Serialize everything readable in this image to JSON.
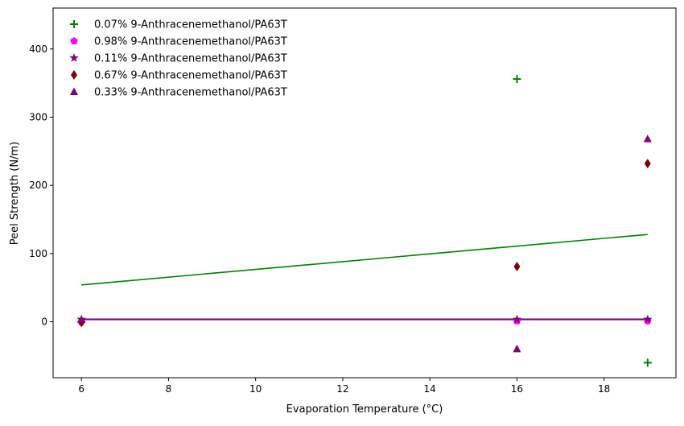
{
  "chart_data": {
    "type": "scatter",
    "title": "",
    "xlabel": "Evaporation Temperature (°C)",
    "ylabel": "Peel Strength (N/m)",
    "xlim": [
      5.35,
      19.65
    ],
    "ylim": [
      -82,
      460
    ],
    "x_ticks": [
      6,
      8,
      10,
      12,
      14,
      16,
      18
    ],
    "y_ticks": [
      0,
      100,
      200,
      300,
      400
    ],
    "grid": false,
    "legend_position": "top-left",
    "series": [
      {
        "name": "0.07% 9-Anthracenemethanol/PA63T",
        "marker": "plus",
        "color": "#008000",
        "x": [
          6,
          16,
          19
        ],
        "y": [
          -0.5,
          356,
          -60
        ],
        "fit": {
          "x": [
            6,
            19
          ],
          "y": [
            54,
            128
          ],
          "color": "#008000"
        }
      },
      {
        "name": "0.98% 9-Anthracenemethanol/PA63T",
        "marker": "pentagon",
        "color": "#ff00ff",
        "x": [
          6,
          16,
          19
        ],
        "y": [
          0,
          1,
          1
        ],
        "fit": {
          "x": [
            6,
            19
          ],
          "y": [
            3.5,
            3.5
          ],
          "color": "#ff00ff"
        }
      },
      {
        "name": "0.11% 9-Anthracenemethanol/PA63T",
        "marker": "star",
        "color": "#800080",
        "x": [
          6,
          16,
          19
        ],
        "y": [
          3.5,
          3.5,
          3.5
        ],
        "fit": {
          "x": [
            6,
            19
          ],
          "y": [
            3.8,
            3.8
          ],
          "color": "#800080"
        }
      },
      {
        "name": "0.67% 9-Anthracenemethanol/PA63T",
        "marker": "diamond",
        "color": "#800000",
        "x": [
          6,
          16,
          19
        ],
        "y": [
          -1,
          81,
          232
        ],
        "fit": null
      },
      {
        "name": "0.33% 9-Anthracenemethanol/PA63T",
        "marker": "triangle",
        "color": "#800080",
        "x": [
          6,
          16,
          19
        ],
        "y": [
          3,
          -40,
          268
        ],
        "fit": {
          "x": [
            6,
            19
          ],
          "y": [
            3.2,
            3.2
          ],
          "color": "#800080"
        }
      }
    ]
  }
}
